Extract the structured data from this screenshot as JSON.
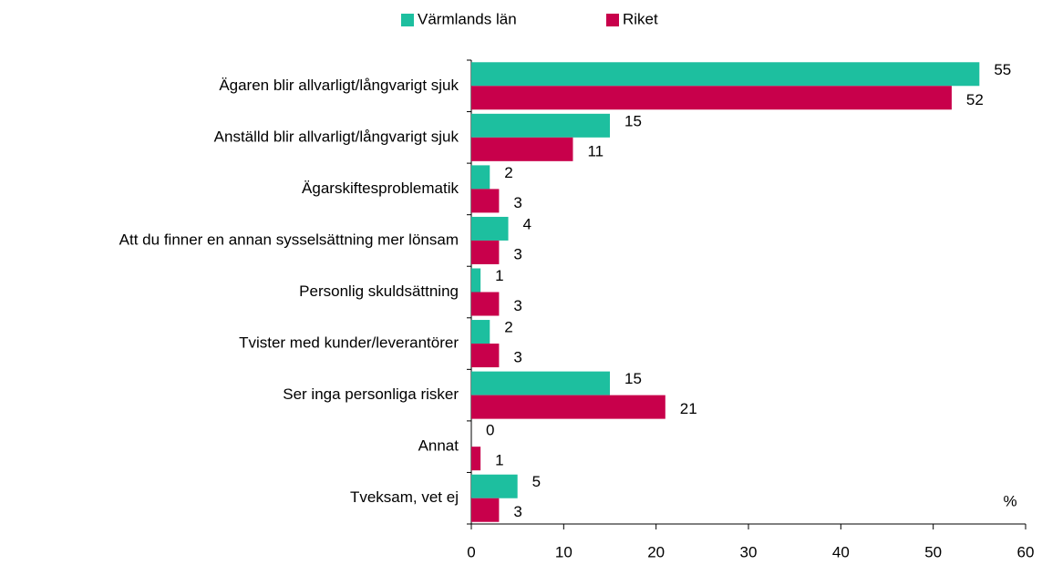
{
  "chart_data": {
    "type": "hbar",
    "categories": [
      "Ägaren blir allvarligt/långvarigt sjuk",
      "Anställd blir allvarligt/långvarigt sjuk",
      "Ägarskiftesproblematik",
      "Att du finner en annan sysselsättning mer lönsam",
      "Personlig skuldsättning",
      "Tvister med kunder/leverantörer",
      "Ser inga personliga risker",
      "Annat",
      "Tveksam, vet ej"
    ],
    "series": [
      {
        "name": "Värmlands län",
        "color": "#1dbf9f",
        "values": [
          55,
          15,
          2,
          4,
          1,
          2,
          15,
          0,
          5
        ]
      },
      {
        "name": "Riket",
        "color": "#c8004b",
        "values": [
          52,
          11,
          3,
          3,
          3,
          3,
          21,
          1,
          3
        ]
      }
    ],
    "xlim": [
      0,
      60
    ],
    "xticks": [
      0,
      10,
      20,
      30,
      40,
      50,
      60
    ],
    "annotation": "%",
    "legend": "top",
    "grid": false
  }
}
